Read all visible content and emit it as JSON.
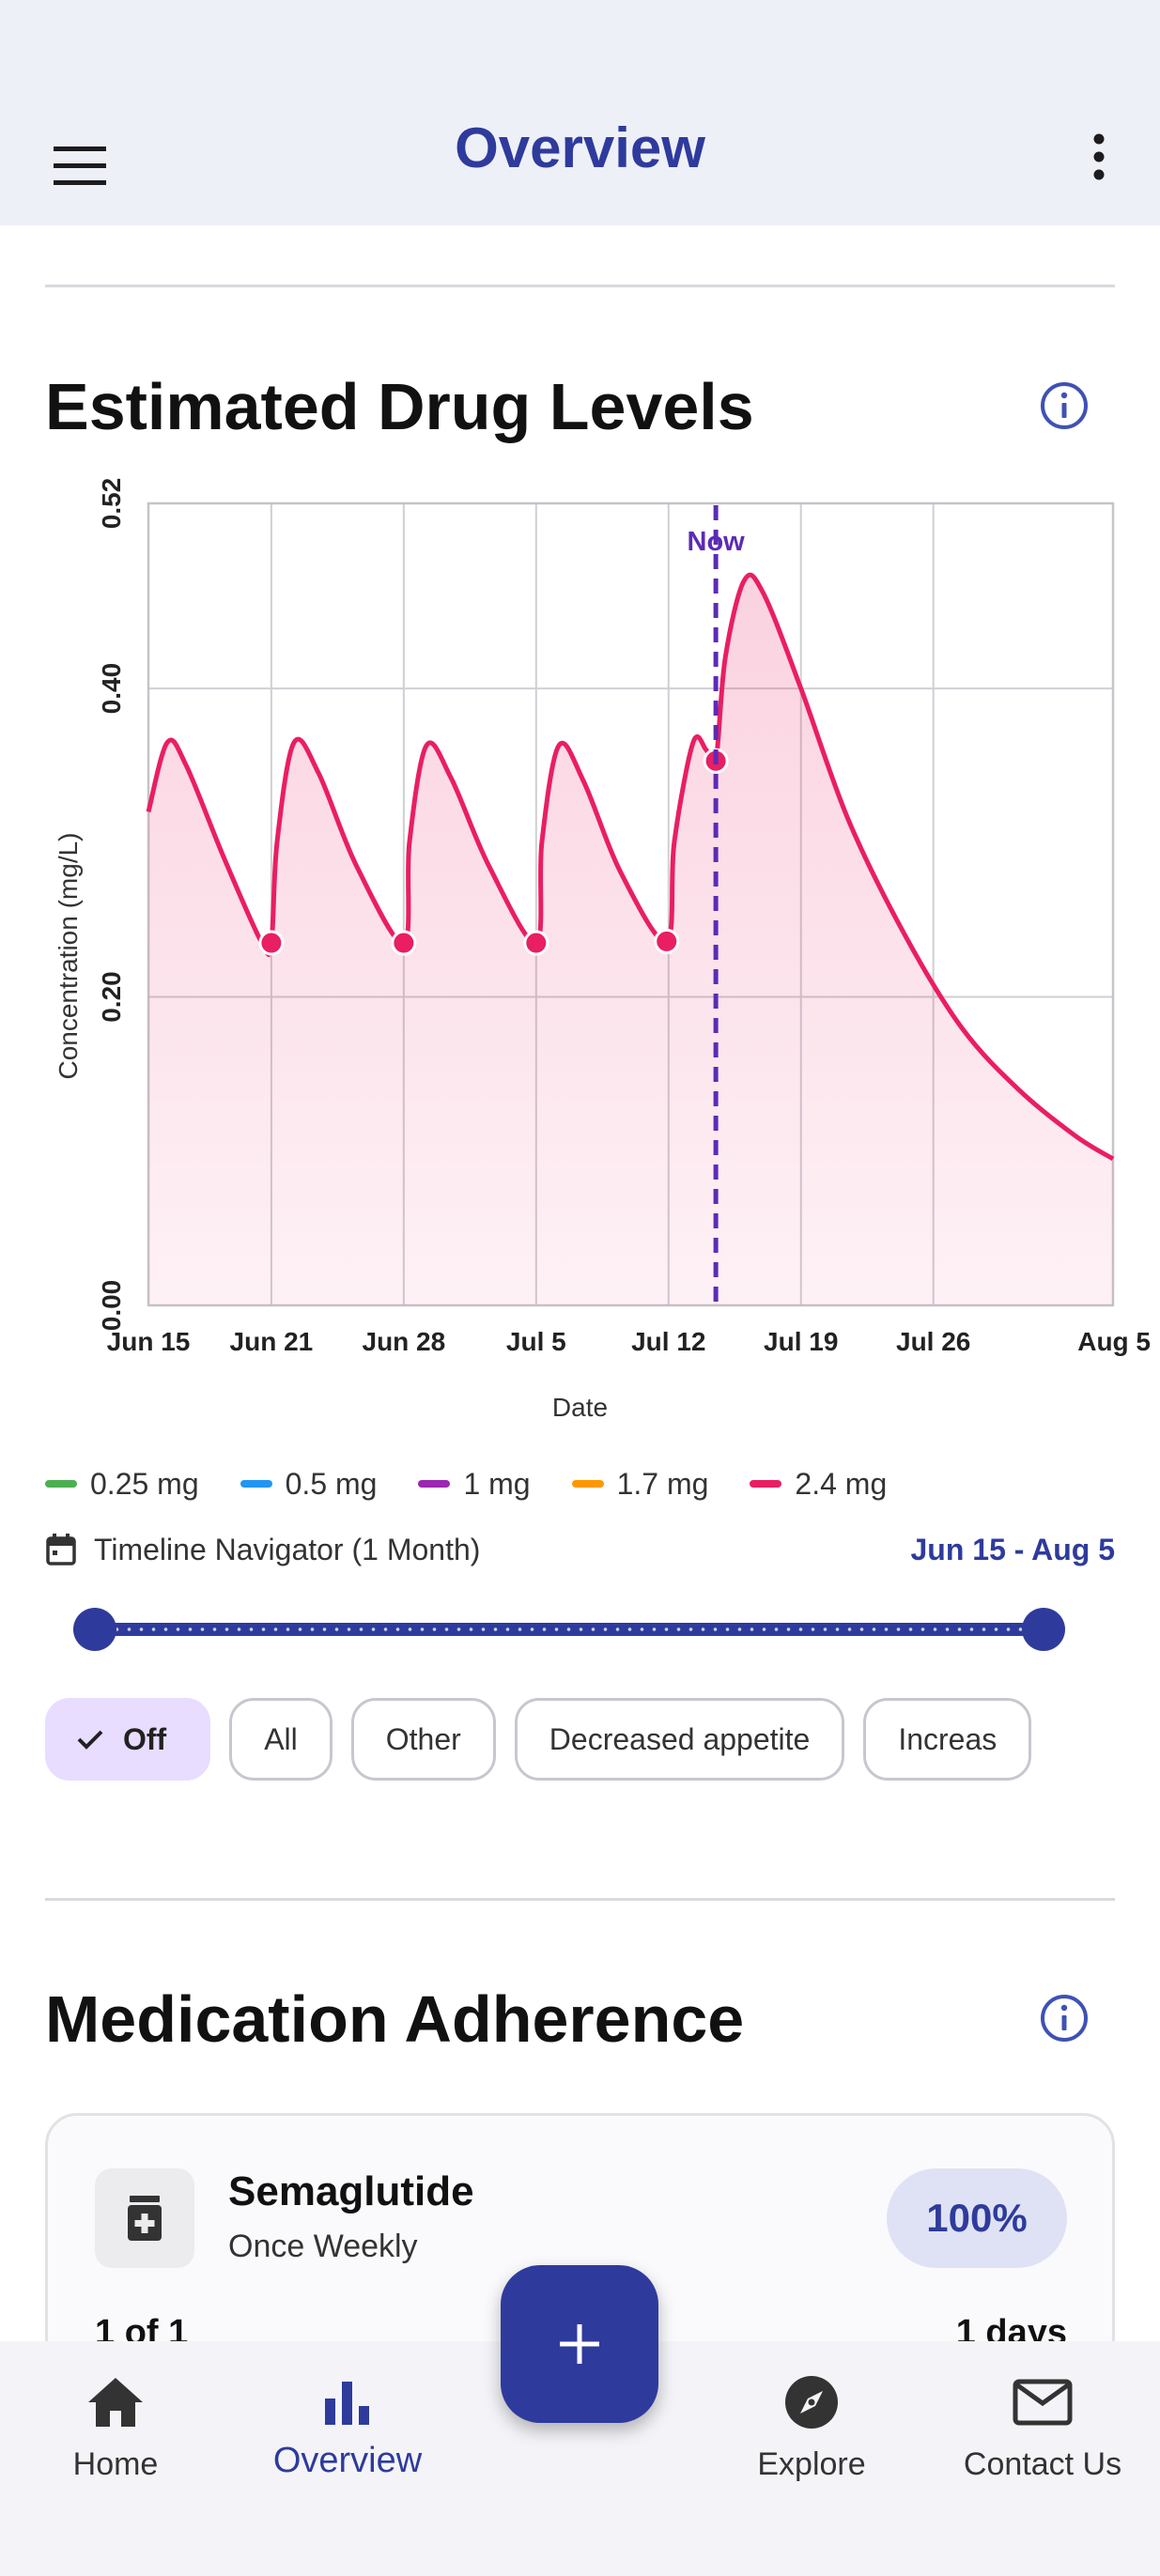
{
  "app_bar": {
    "title": "Overview",
    "menu_icon": "hamburger-menu-icon",
    "more_icon": "more-vertical-icon"
  },
  "drug_levels": {
    "title": "Estimated Drug Levels",
    "info_icon": "info-icon",
    "legend": [
      {
        "label": "0.25 mg",
        "color": "#4caf50"
      },
      {
        "label": "0.5 mg",
        "color": "#2196f3"
      },
      {
        "label": "1 mg",
        "color": "#9c27b0"
      },
      {
        "label": "1.7 mg",
        "color": "#ff9800"
      },
      {
        "label": "2.4 mg",
        "color": "#e91e63"
      }
    ],
    "timeline_label": "Timeline Navigator (1 Month)",
    "timeline_range": "Jun 15 - Aug 5",
    "slider_range": [
      0,
      1
    ],
    "chips": [
      {
        "label": "Off",
        "selected": true
      },
      {
        "label": "All",
        "selected": false
      },
      {
        "label": "Other",
        "selected": false
      },
      {
        "label": "Decreased appetite",
        "selected": false
      },
      {
        "label": "Increas",
        "selected": false
      }
    ]
  },
  "chart_data": {
    "type": "area",
    "xlabel": "Date",
    "ylabel": "Concentration (mg/L)",
    "x_start": "Jun 15",
    "x_end": "Aug 5",
    "xlim_days": [
      0,
      51
    ],
    "ylim": [
      0,
      0.52
    ],
    "y_ticks": [
      {
        "label": "0.00",
        "value": 0
      },
      {
        "label": "0.20",
        "value": 0.2
      },
      {
        "label": "0.40",
        "value": 0.4
      },
      {
        "label": "0.52",
        "value": 0.52
      }
    ],
    "x_ticks": [
      {
        "label": "Jun 15",
        "day": 0
      },
      {
        "label": "Jun 21",
        "day": 6.5
      },
      {
        "label": "Jun 28",
        "day": 13.5
      },
      {
        "label": "Jul 5",
        "day": 20.5
      },
      {
        "label": "Jul 12",
        "day": 27.5
      },
      {
        "label": "Jul 19",
        "day": 34.5
      },
      {
        "label": "Jul 26",
        "day": 41.5
      },
      {
        "label": "Aug 5",
        "day": 51
      }
    ],
    "now_label": "Now",
    "now_day": 30,
    "grid": true,
    "series": [
      {
        "name": "2.4 mg",
        "color": "#e91e63",
        "points": [
          [
            0,
            0.32
          ],
          [
            1,
            0.365
          ],
          [
            2,
            0.35
          ],
          [
            4,
            0.29
          ],
          [
            6,
            0.235
          ],
          [
            6.5,
            0.235
          ],
          [
            6.8,
            0.3
          ],
          [
            7.7,
            0.365
          ],
          [
            9,
            0.345
          ],
          [
            11,
            0.285
          ],
          [
            13.5,
            0.235
          ],
          [
            13.8,
            0.3
          ],
          [
            14.7,
            0.363
          ],
          [
            16,
            0.342
          ],
          [
            18,
            0.285
          ],
          [
            20.5,
            0.235
          ],
          [
            20.8,
            0.3
          ],
          [
            21.7,
            0.363
          ],
          [
            23,
            0.34
          ],
          [
            25,
            0.28
          ],
          [
            27.4,
            0.236
          ],
          [
            27.8,
            0.3
          ],
          [
            28.8,
            0.365
          ],
          [
            29.5,
            0.36
          ],
          [
            30,
            0.353
          ],
          [
            30.5,
            0.42
          ],
          [
            31.5,
            0.47
          ],
          [
            32.5,
            0.462
          ],
          [
            34.5,
            0.4
          ],
          [
            37,
            0.315
          ],
          [
            40,
            0.24
          ],
          [
            43,
            0.18
          ],
          [
            46,
            0.14
          ],
          [
            49,
            0.11
          ],
          [
            51,
            0.095
          ]
        ],
        "dose_days": [
          6.5,
          13.5,
          20.5,
          27.4,
          30
        ]
      }
    ]
  },
  "adherence": {
    "title": "Medication Adherence",
    "info_icon": "info-icon",
    "card": {
      "name": "Semaglutide",
      "frequency": "Once Weekly",
      "percent": "100%",
      "count_left": "1 of 1",
      "count_right": "1 days"
    }
  },
  "fab_icon": "plus-icon",
  "bottom_nav": [
    {
      "label": "Home",
      "icon": "home-icon",
      "active": false
    },
    {
      "label": "Overview",
      "icon": "bar-chart-icon",
      "active": true
    },
    {
      "label": "Explore",
      "icon": "compass-icon",
      "active": false
    },
    {
      "label": "Contact Us",
      "icon": "mail-icon",
      "active": false
    }
  ]
}
